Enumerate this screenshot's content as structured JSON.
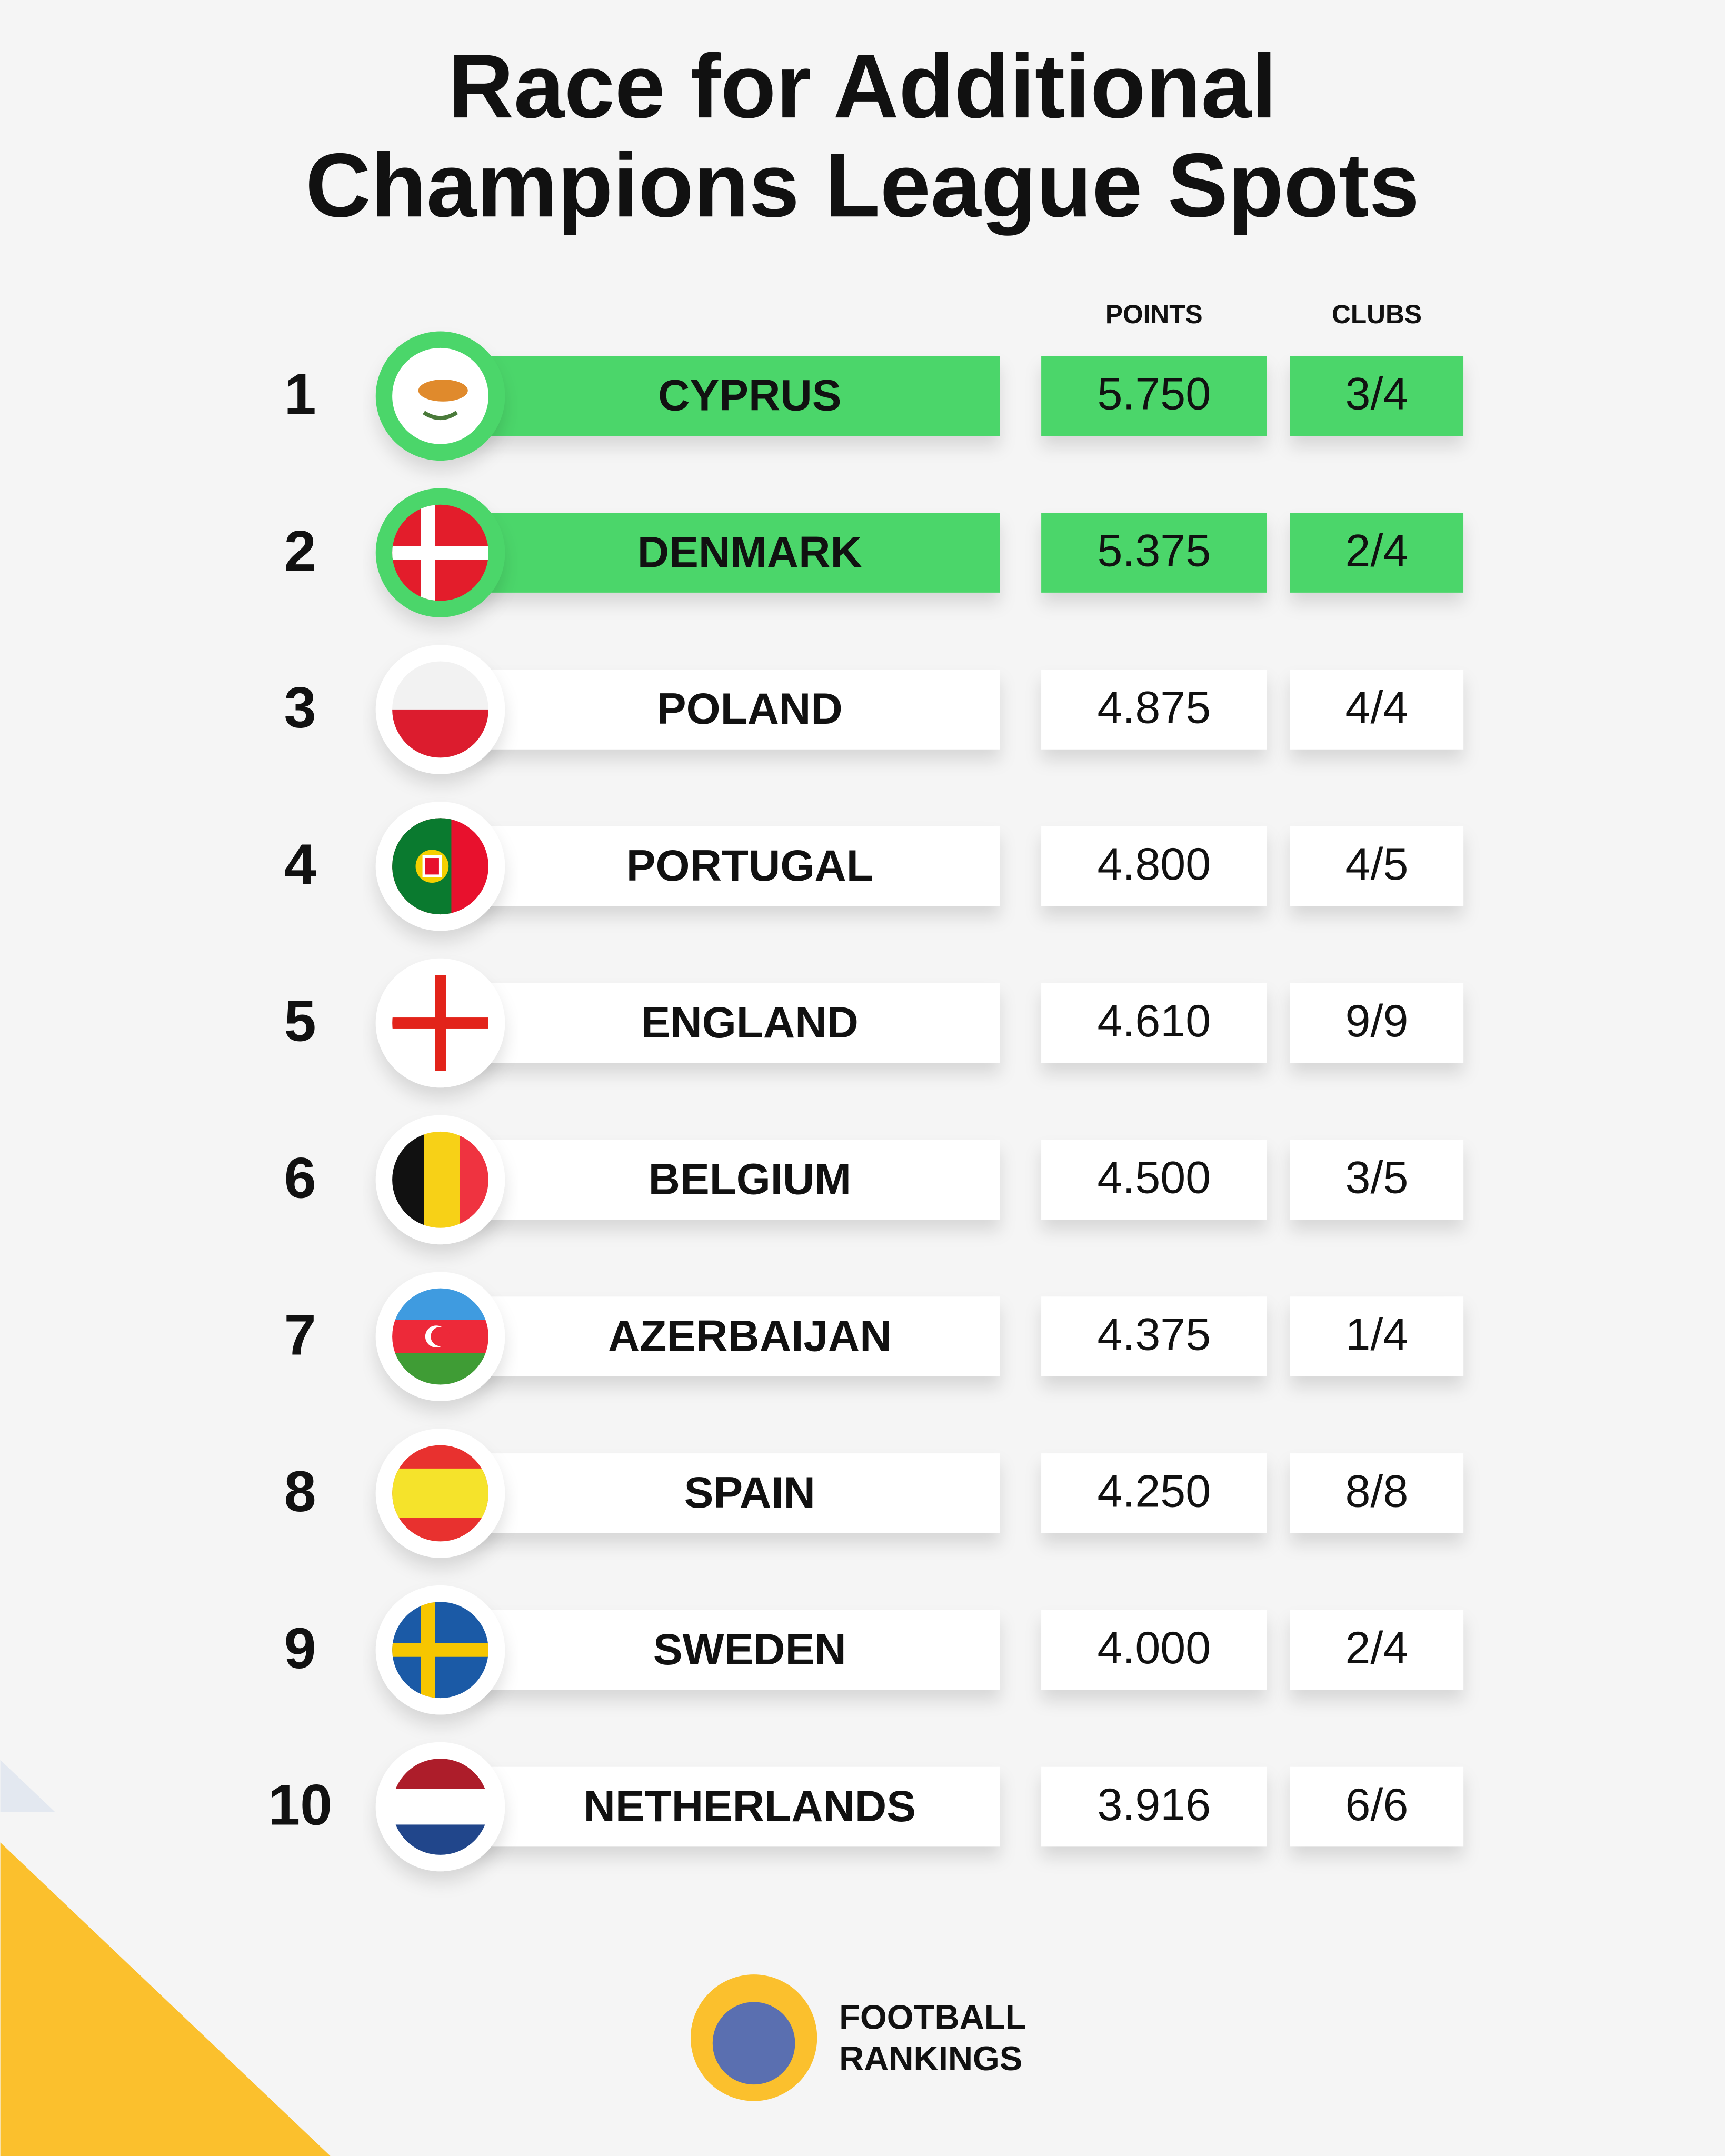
{
  "title": [
    "Race for Additional",
    "Champions League Spots"
  ],
  "table": {
    "headers": {
      "points": "POINTS",
      "clubs": "CLUBS"
    },
    "rows": [
      {
        "rank": "1",
        "country": "CYPRUS",
        "points": "5.750",
        "clubs": "3/4",
        "highlight": true
      },
      {
        "rank": "2",
        "country": "DENMARK",
        "points": "5.375",
        "clubs": "2/4",
        "highlight": true
      },
      {
        "rank": "3",
        "country": "POLAND",
        "points": "4.875",
        "clubs": "4/4",
        "highlight": false
      },
      {
        "rank": "4",
        "country": "PORTUGAL",
        "points": "4.800",
        "clubs": "4/5",
        "highlight": false
      },
      {
        "rank": "5",
        "country": "ENGLAND",
        "points": "4.610",
        "clubs": "9/9",
        "highlight": false
      },
      {
        "rank": "6",
        "country": "BELGIUM",
        "points": "4.500",
        "clubs": "3/5",
        "highlight": false
      },
      {
        "rank": "7",
        "country": "AZERBAIJAN",
        "points": "4.375",
        "clubs": "1/4",
        "highlight": false
      },
      {
        "rank": "8",
        "country": "SPAIN",
        "points": "4.250",
        "clubs": "8/8",
        "highlight": false
      },
      {
        "rank": "9",
        "country": "SWEDEN",
        "points": "4.000",
        "clubs": "2/4",
        "highlight": false
      },
      {
        "rank": "10",
        "country": "NETHERLANDS",
        "points": "3.916",
        "clubs": "6/6",
        "highlight": false
      }
    ]
  },
  "logo": [
    "FOOTBALL",
    "RANKINGS"
  ]
}
